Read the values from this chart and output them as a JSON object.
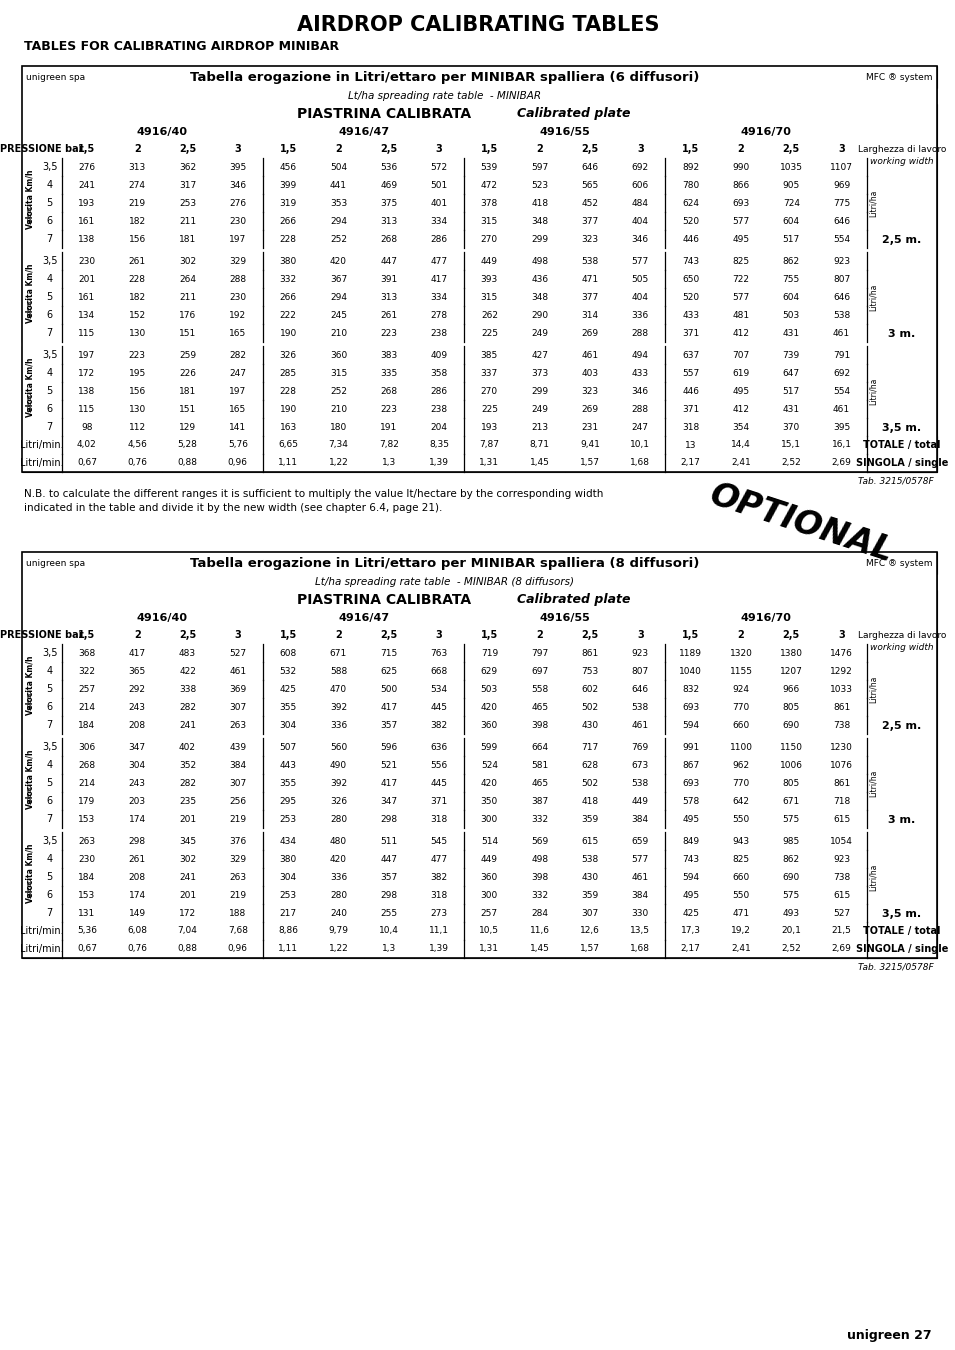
{
  "page_title": "AIRDROP CALIBRATING TABLES",
  "subtitle": "TABLES FOR CALIBRATING AIRDROP MINIBAR",
  "table1": {
    "header_left": "unigreen spa",
    "header_center": "Tabella erogazione in Litri/ettaro per MINIBAR spalliera (6 diffusori)",
    "header_right": "MFC ® system",
    "subheader": "Lt/ha spreading rate table  - MINIBAR",
    "piastrina": "PIASTRINA CALIBRATA",
    "calibrated": "Calibrated plate",
    "col_groups": [
      "4916/40",
      "4916/47",
      "4916/55",
      "4916/70"
    ],
    "col_headers": [
      "1,5",
      "2",
      "2,5",
      "3",
      "1,5",
      "2",
      "2,5",
      "3",
      "1,5",
      "2",
      "2,5",
      "3",
      "1,5",
      "2",
      "2,5",
      "3"
    ],
    "row_label": "PRESSIONE bar",
    "larghezza_line1": "Larghezza di lavoro",
    "larghezza_line2": "working width",
    "sections": [
      {
        "speeds": [
          "3,5",
          "4",
          "5",
          "6",
          "7"
        ],
        "data": [
          [
            276,
            313,
            362,
            395,
            456,
            504,
            536,
            572,
            539,
            597,
            646,
            692,
            892,
            990,
            1035,
            1107
          ],
          [
            241,
            274,
            317,
            346,
            399,
            441,
            469,
            501,
            472,
            523,
            565,
            606,
            780,
            866,
            905,
            969
          ],
          [
            193,
            219,
            253,
            276,
            319,
            353,
            375,
            401,
            378,
            418,
            452,
            484,
            624,
            693,
            724,
            775
          ],
          [
            161,
            182,
            211,
            230,
            266,
            294,
            313,
            334,
            315,
            348,
            377,
            404,
            520,
            577,
            604,
            646
          ],
          [
            138,
            156,
            181,
            197,
            228,
            252,
            268,
            286,
            270,
            299,
            323,
            346,
            446,
            495,
            517,
            554
          ]
        ],
        "width_label": "2,5 m."
      },
      {
        "speeds": [
          "3,5",
          "4",
          "5",
          "6",
          "7"
        ],
        "data": [
          [
            230,
            261,
            302,
            329,
            380,
            420,
            447,
            477,
            449,
            498,
            538,
            577,
            743,
            825,
            862,
            923
          ],
          [
            201,
            228,
            264,
            288,
            332,
            367,
            391,
            417,
            393,
            436,
            471,
            505,
            650,
            722,
            755,
            807
          ],
          [
            161,
            182,
            211,
            230,
            266,
            294,
            313,
            334,
            315,
            348,
            377,
            404,
            520,
            577,
            604,
            646
          ],
          [
            134,
            152,
            176,
            192,
            222,
            245,
            261,
            278,
            262,
            290,
            314,
            336,
            433,
            481,
            503,
            538
          ],
          [
            115,
            130,
            151,
            165,
            190,
            210,
            223,
            238,
            225,
            249,
            269,
            288,
            371,
            412,
            431,
            461
          ]
        ],
        "width_label": "3 m."
      },
      {
        "speeds": [
          "3,5",
          "4",
          "5",
          "6",
          "7"
        ],
        "data": [
          [
            197,
            223,
            259,
            282,
            326,
            360,
            383,
            409,
            385,
            427,
            461,
            494,
            637,
            707,
            739,
            791
          ],
          [
            172,
            195,
            226,
            247,
            285,
            315,
            335,
            358,
            337,
            373,
            403,
            433,
            557,
            619,
            647,
            692
          ],
          [
            138,
            156,
            181,
            197,
            228,
            252,
            268,
            286,
            270,
            299,
            323,
            346,
            446,
            495,
            517,
            554
          ],
          [
            115,
            130,
            151,
            165,
            190,
            210,
            223,
            238,
            225,
            249,
            269,
            288,
            371,
            412,
            431,
            461
          ],
          [
            98,
            112,
            129,
            141,
            163,
            180,
            191,
            204,
            193,
            213,
            231,
            247,
            318,
            354,
            370,
            395
          ]
        ],
        "width_label": "3,5 m."
      }
    ],
    "totale_row": [
      "4,02",
      "4,56",
      "5,28",
      "5,76",
      "6,65",
      "7,34",
      "7,82",
      "8,35",
      "7,87",
      "8,71",
      "9,41",
      "10,1",
      "13",
      "14,4",
      "15,1",
      "16,1"
    ],
    "singola_row": [
      "0,67",
      "0,76",
      "0,88",
      "0,96",
      "1,11",
      "1,22",
      "1,3",
      "1,39",
      "1,31",
      "1,45",
      "1,57",
      "1,68",
      "2,17",
      "2,41",
      "2,52",
      "2,69"
    ],
    "tab_ref": "Tab. 3215/0578F"
  },
  "nb_text_line1": "N.B. to calculate the different ranges it is sufficient to multiply the value lt/hectare by the corresponding width",
  "nb_text_line2": "indicated in the table and divide it by the new width (see chapter 6.4, page 21).",
  "optional_text": "OPTIONAL",
  "table2": {
    "header_left": "unigreen spa",
    "header_center": "Tabella erogazione in Litri/ettaro per MINIBAR spalliera (8 diffusori)",
    "header_right": "MFC ® system",
    "subheader": "Lt/ha spreading rate table  - MINIBAR (8 diffusors)",
    "piastrina": "PIASTRINA CALIBRATA",
    "calibrated": "Calibrated plate",
    "col_groups": [
      "4916/40",
      "4916/47",
      "4916/55",
      "4916/70"
    ],
    "col_headers": [
      "1,5",
      "2",
      "2,5",
      "3",
      "1,5",
      "2",
      "2,5",
      "3",
      "1,5",
      "2",
      "2,5",
      "3",
      "1,5",
      "2",
      "2,5",
      "3"
    ],
    "row_label": "PRESSIONE bar",
    "larghezza_line1": "Larghezza di lavoro",
    "larghezza_line2": "working width",
    "sections": [
      {
        "speeds": [
          "3,5",
          "4",
          "5",
          "6",
          "7"
        ],
        "data": [
          [
            368,
            417,
            483,
            527,
            608,
            671,
            715,
            763,
            719,
            797,
            861,
            923,
            1189,
            1320,
            1380,
            1476
          ],
          [
            322,
            365,
            422,
            461,
            532,
            588,
            625,
            668,
            629,
            697,
            753,
            807,
            1040,
            1155,
            1207,
            1292
          ],
          [
            257,
            292,
            338,
            369,
            425,
            470,
            500,
            534,
            503,
            558,
            602,
            646,
            832,
            924,
            966,
            1033
          ],
          [
            214,
            243,
            282,
            307,
            355,
            392,
            417,
            445,
            420,
            465,
            502,
            538,
            693,
            770,
            805,
            861
          ],
          [
            184,
            208,
            241,
            263,
            304,
            336,
            357,
            382,
            360,
            398,
            430,
            461,
            594,
            660,
            690,
            738
          ]
        ],
        "width_label": "2,5 m."
      },
      {
        "speeds": [
          "3,5",
          "4",
          "5",
          "6",
          "7"
        ],
        "data": [
          [
            306,
            347,
            402,
            439,
            507,
            560,
            596,
            636,
            599,
            664,
            717,
            769,
            991,
            1100,
            1150,
            1230
          ],
          [
            268,
            304,
            352,
            384,
            443,
            490,
            521,
            556,
            524,
            581,
            628,
            673,
            867,
            962,
            1006,
            1076
          ],
          [
            214,
            243,
            282,
            307,
            355,
            392,
            417,
            445,
            420,
            465,
            502,
            538,
            693,
            770,
            805,
            861
          ],
          [
            179,
            203,
            235,
            256,
            295,
            326,
            347,
            371,
            350,
            387,
            418,
            449,
            578,
            642,
            671,
            718
          ],
          [
            153,
            174,
            201,
            219,
            253,
            280,
            298,
            318,
            300,
            332,
            359,
            384,
            495,
            550,
            575,
            615
          ]
        ],
        "width_label": "3 m."
      },
      {
        "speeds": [
          "3,5",
          "4",
          "5",
          "6",
          "7"
        ],
        "data": [
          [
            263,
            298,
            345,
            376,
            434,
            480,
            511,
            545,
            514,
            569,
            615,
            659,
            849,
            943,
            985,
            1054
          ],
          [
            230,
            261,
            302,
            329,
            380,
            420,
            447,
            477,
            449,
            498,
            538,
            577,
            743,
            825,
            862,
            923
          ],
          [
            184,
            208,
            241,
            263,
            304,
            336,
            357,
            382,
            360,
            398,
            430,
            461,
            594,
            660,
            690,
            738
          ],
          [
            153,
            174,
            201,
            219,
            253,
            280,
            298,
            318,
            300,
            332,
            359,
            384,
            495,
            550,
            575,
            615
          ],
          [
            131,
            149,
            172,
            188,
            217,
            240,
            255,
            273,
            257,
            284,
            307,
            330,
            425,
            471,
            493,
            527
          ]
        ],
        "width_label": "3,5 m."
      }
    ],
    "totale_row": [
      "5,36",
      "6,08",
      "7,04",
      "7,68",
      "8,86",
      "9,79",
      "10,4",
      "11,1",
      "10,5",
      "11,6",
      "12,6",
      "13,5",
      "17,3",
      "19,2",
      "20,1",
      "21,5"
    ],
    "singola_row": [
      "0,67",
      "0,76",
      "0,88",
      "0,96",
      "1,11",
      "1,22",
      "1,3",
      "1,39",
      "1,31",
      "1,45",
      "1,57",
      "1,68",
      "2,17",
      "2,41",
      "2,52",
      "2,69"
    ],
    "tab_ref": "Tab. 3215/0578F"
  },
  "footer": "unigreen 27",
  "bg_color": "#ffffff"
}
